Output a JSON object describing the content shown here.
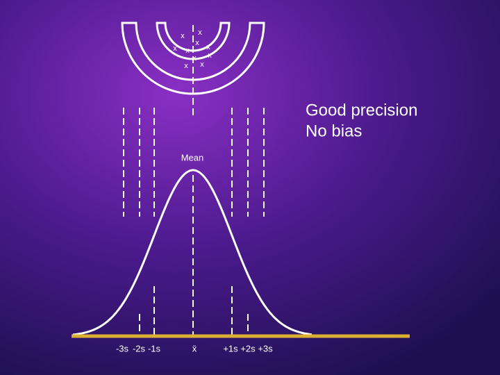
{
  "target": {
    "marks": [
      "x",
      "x",
      "x",
      "x",
      "x",
      "x",
      "x",
      "x",
      "x",
      "x"
    ]
  },
  "caption": {
    "lines": [
      "Good precision",
      "No bias"
    ]
  },
  "curve": {
    "peak_label": "Mean",
    "axis_labels": [
      "-3s",
      "-2s",
      "-1s",
      "x̄",
      "+1s",
      "+2s",
      "+3s"
    ]
  }
}
